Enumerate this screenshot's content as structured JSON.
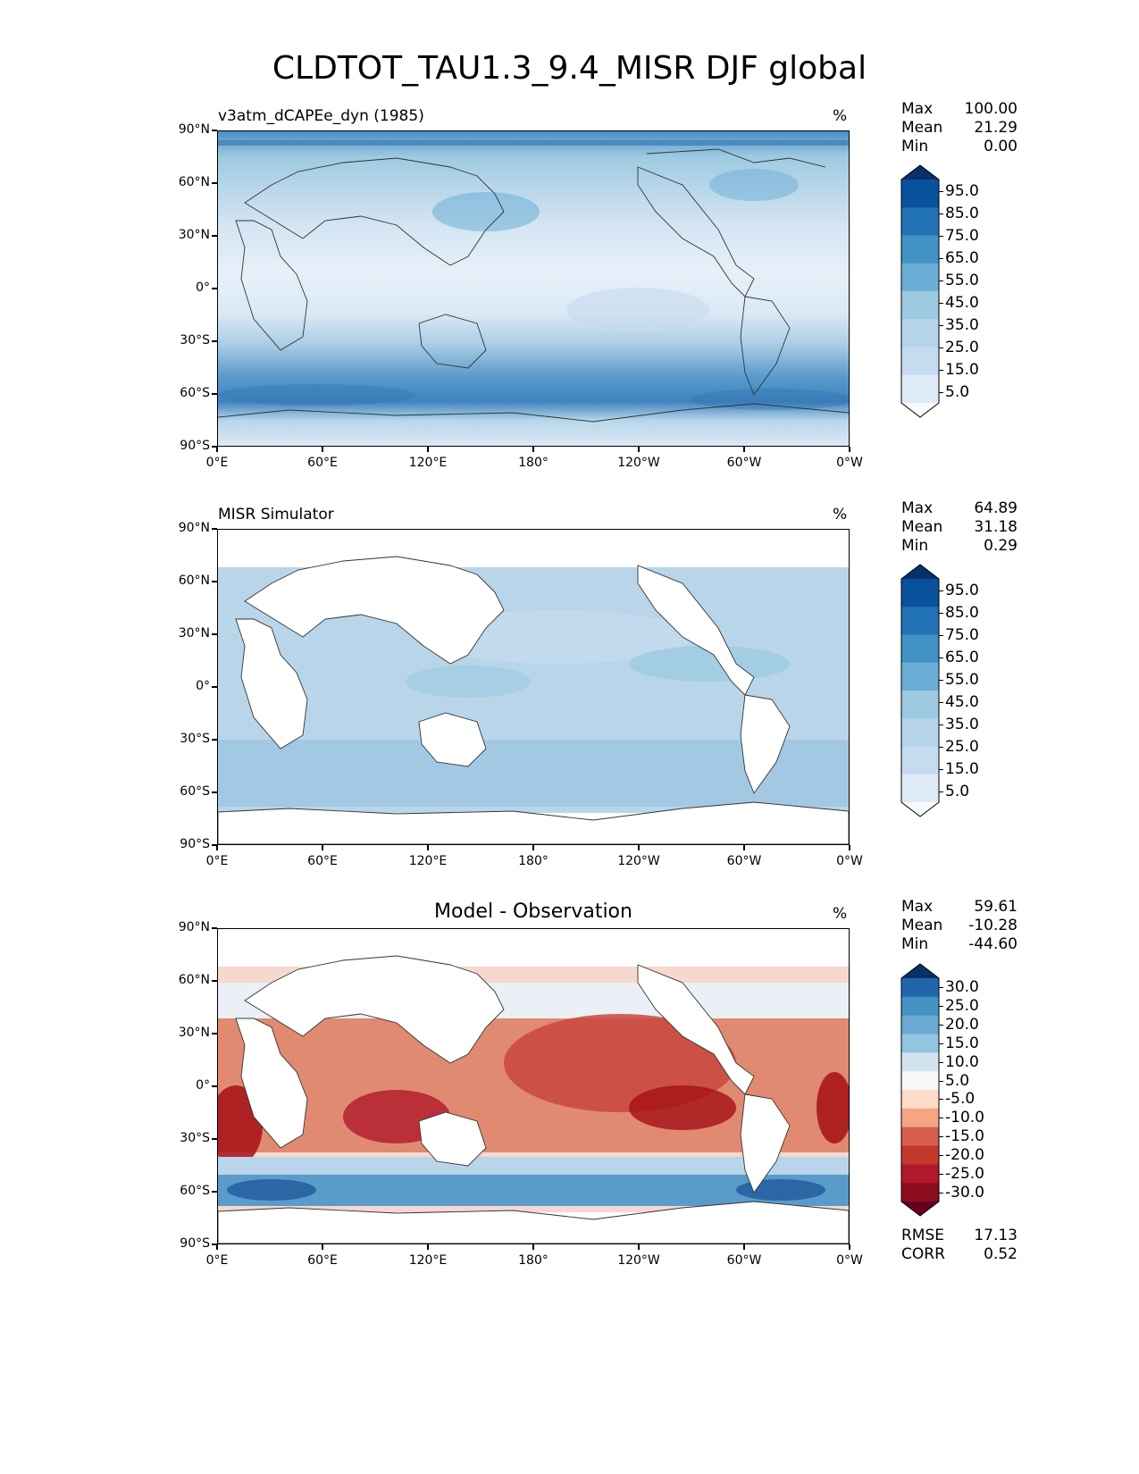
{
  "title": "CLDTOT_TAU1.3_9.4_MISR DJF global",
  "axes": {
    "y_ticks": [
      "90°N",
      "60°N",
      "30°N",
      "0°",
      "30°S",
      "60°S",
      "90°S"
    ],
    "x_ticks": [
      "0°E",
      "60°E",
      "120°E",
      "180°",
      "120°W",
      "60°W",
      "0°W"
    ]
  },
  "panels": [
    {
      "label": "v3atm_dCAPEe_dyn (1985)",
      "center_title": "",
      "units": "%",
      "stats": [
        {
          "label": "Max",
          "value": "100.00"
        },
        {
          "label": "Mean",
          "value": "21.29"
        },
        {
          "label": "Min",
          "value": "0.00"
        }
      ],
      "colorbar": {
        "labels": [
          "95.0",
          "85.0",
          "75.0",
          "65.0",
          "55.0",
          "45.0",
          "35.0",
          "25.0",
          "15.0",
          "5.0"
        ],
        "colors": [
          "#08306b",
          "#08519c",
          "#2171b5",
          "#4292c6",
          "#6baed6",
          "#9ecae1",
          "#b6d4e9",
          "#c6dbef",
          "#deebf7",
          "#f7fbff"
        ]
      }
    },
    {
      "label": "MISR Simulator",
      "center_title": "",
      "units": "%",
      "stats": [
        {
          "label": "Max",
          "value": "64.89"
        },
        {
          "label": "Mean",
          "value": "31.18"
        },
        {
          "label": "Min",
          "value": "0.29"
        }
      ],
      "colorbar": {
        "labels": [
          "95.0",
          "85.0",
          "75.0",
          "65.0",
          "55.0",
          "45.0",
          "35.0",
          "25.0",
          "15.0",
          "5.0"
        ],
        "colors": [
          "#08306b",
          "#08519c",
          "#2171b5",
          "#4292c6",
          "#6baed6",
          "#9ecae1",
          "#b6d4e9",
          "#c6dbef",
          "#deebf7",
          "#f7fbff"
        ]
      }
    },
    {
      "label": "",
      "center_title": "Model - Observation",
      "units": "%",
      "stats": [
        {
          "label": "Max",
          "value": "59.61"
        },
        {
          "label": "Mean",
          "value": "-10.28"
        },
        {
          "label": "Min",
          "value": "-44.60"
        }
      ],
      "colorbar": {
        "labels": [
          "30.0",
          "25.0",
          "20.0",
          "15.0",
          "10.0",
          "5.0",
          "-5.0",
          "-10.0",
          "-15.0",
          "-20.0",
          "-25.0",
          "-30.0"
        ],
        "colors": [
          "#08306b",
          "#2166ac",
          "#4393c3",
          "#6aa9d2",
          "#92c5de",
          "#d1e5f0",
          "#f7f7f7",
          "#fddbc7",
          "#f4a582",
          "#d6604d",
          "#c0392b",
          "#b2182b",
          "#8b0d1f",
          "#67001f"
        ]
      },
      "metrics": [
        {
          "label": "RMSE",
          "value": "17.13"
        },
        {
          "label": "CORR",
          "value": "0.52"
        }
      ]
    }
  ],
  "colors": {
    "ocean_blue_light": "#dbe9f6",
    "ocean_blue_mid": "#a9cce4",
    "ocean_blue_dark": "#4a8fc4",
    "diff_red": "#d6604d",
    "diff_red_dark": "#a50f15",
    "diff_blue": "#2c6fae"
  }
}
